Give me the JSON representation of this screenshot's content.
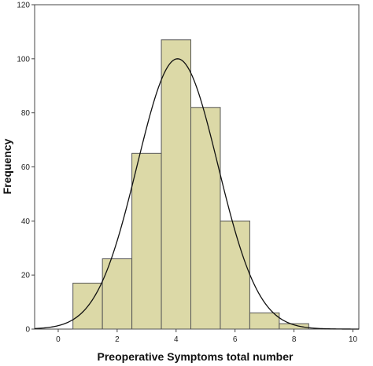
{
  "chart_data": {
    "type": "bar",
    "subtype": "histogram",
    "xlabel": "Preoperative Symptoms total number",
    "ylabel": "Frequency",
    "xlim": [
      -0.8,
      10.2
    ],
    "ylim": [
      0,
      120
    ],
    "x_ticks": [
      "0",
      "2",
      "4",
      "6",
      "8",
      "10"
    ],
    "y_ticks": [
      "0",
      "20",
      "40",
      "60",
      "80",
      "100",
      "120"
    ],
    "bins": [
      {
        "x_start": 0.5,
        "x_end": 1.5,
        "value": 17
      },
      {
        "x_start": 1.5,
        "x_end": 2.5,
        "value": 26
      },
      {
        "x_start": 2.5,
        "x_end": 3.5,
        "value": 65
      },
      {
        "x_start": 3.5,
        "x_end": 4.5,
        "value": 107
      },
      {
        "x_start": 4.5,
        "x_end": 5.5,
        "value": 82
      },
      {
        "x_start": 5.5,
        "x_end": 6.5,
        "value": 40
      },
      {
        "x_start": 6.5,
        "x_end": 7.5,
        "value": 6
      },
      {
        "x_start": 7.5,
        "x_end": 8.5,
        "value": 2
      }
    ],
    "normal_curve": {
      "mean": 4.05,
      "sd": 1.37,
      "peak": 100
    },
    "bar_color": "#dcd9a7",
    "bar_edge_color": "#555555",
    "curve_color": "#111111",
    "grid": false,
    "legend": "none"
  }
}
